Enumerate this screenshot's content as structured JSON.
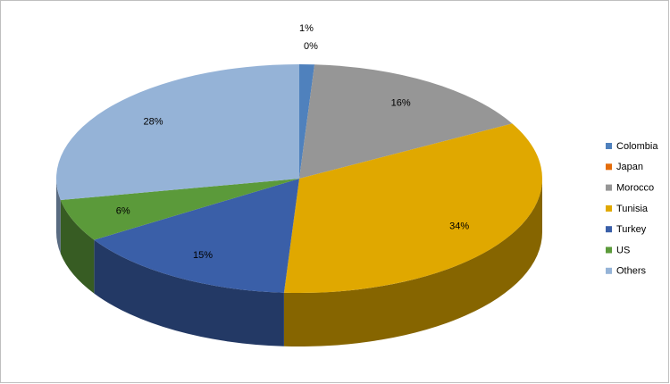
{
  "chart_data": {
    "type": "pie",
    "categories": [
      "Colombia",
      "Japan",
      "Morocco",
      "Tunisia",
      "Turkey",
      "US",
      "Others"
    ],
    "values": [
      1,
      0,
      16,
      34,
      15,
      6,
      28
    ],
    "value_labels": [
      "1%",
      "0%",
      "16%",
      "34%",
      "15%",
      "6%",
      "28%"
    ],
    "colors": [
      "#4f81bd",
      "#e46c0a",
      "#969696",
      "#e0a800",
      "#3a5fa8",
      "#5b9a3a",
      "#95b3d7"
    ],
    "legend": "right"
  }
}
